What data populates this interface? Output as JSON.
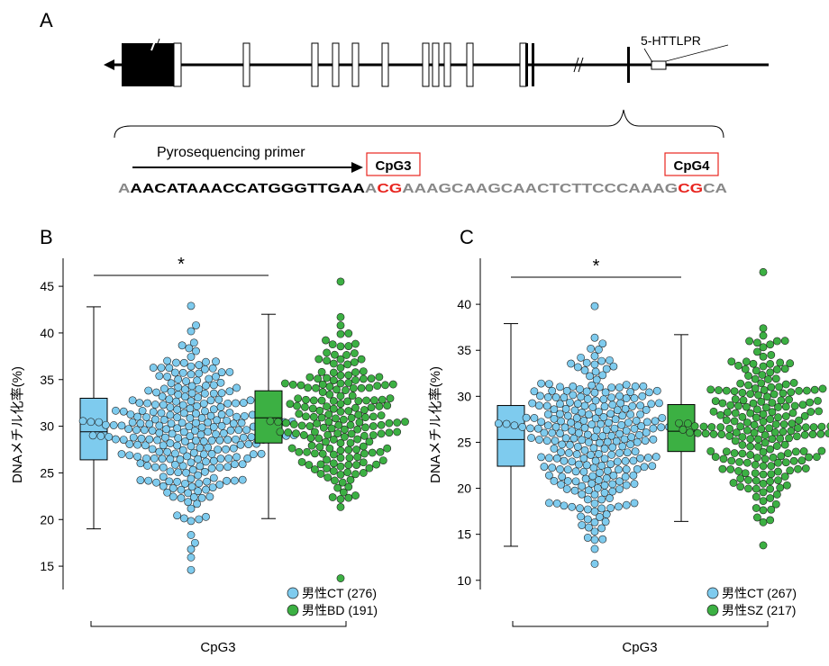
{
  "panelA": {
    "label": "A",
    "htt_label": "5-HTTLPR",
    "primer_label": "Pyrosequencing primer",
    "cpg3_box": "CpG3",
    "cpg4_box": "CpG4",
    "seq_segments": [
      {
        "text": "A",
        "color": "#888888"
      },
      {
        "text": "AACATAAACCATGGGTTGAA",
        "color": "#000000"
      },
      {
        "text": "A",
        "color": "#888888"
      },
      {
        "text": "CG",
        "color": "#e8251f"
      },
      {
        "text": "AAAGCAAGCAACTCTTCCCAAAG",
        "color": "#888888"
      },
      {
        "text": "CG",
        "color": "#e8251f"
      },
      {
        "text": "CA",
        "color": "#888888"
      }
    ]
  },
  "colors": {
    "ct": "#7ecbee",
    "patient": "#3cb043",
    "red": "#e8251f"
  },
  "chart_data": [
    {
      "panel": "B",
      "type": "boxplot+beeswarm",
      "xlabel": "CpG3",
      "ylabel": "DNAメチル化率(%)",
      "ylim": [
        12.5,
        48
      ],
      "yticks": [
        15,
        20,
        25,
        30,
        35,
        40,
        45
      ],
      "significance": "*",
      "series": [
        {
          "name": "男性CT",
          "n": 276,
          "legend": "男性CT (276)",
          "box": {
            "min": 19,
            "q1": 26.4,
            "median": 29.4,
            "q3": 33,
            "max": 42.8
          },
          "range": [
            14.6,
            42.9
          ],
          "mean": 29.4,
          "sd": 4.4
        },
        {
          "name": "男性BD",
          "n": 191,
          "legend": "男性BD (191)",
          "box": {
            "min": 20.1,
            "q1": 28.2,
            "median": 30.9,
            "q3": 33.8,
            "max": 42
          },
          "range": [
            13.7,
            45.5
          ],
          "mean": 31,
          "sd": 4.2
        }
      ]
    },
    {
      "panel": "C",
      "type": "boxplot+beeswarm",
      "xlabel": "CpG3",
      "ylabel": "DNAメチル化率(%)",
      "ylim": [
        9,
        45
      ],
      "yticks": [
        10,
        15,
        20,
        25,
        30,
        35,
        40
      ],
      "significance": "*",
      "series": [
        {
          "name": "男性CT",
          "n": 267,
          "legend": "男性CT (267)",
          "box": {
            "min": 13.7,
            "q1": 22.4,
            "median": 25.3,
            "q3": 29,
            "max": 37.9
          },
          "range": [
            11.8,
            39.8
          ],
          "mean": 25.6,
          "sd": 4.6
        },
        {
          "name": "男性SZ",
          "n": 217,
          "legend": "男性SZ (217)",
          "box": {
            "min": 16.4,
            "q1": 24,
            "median": 26.2,
            "q3": 29.1,
            "max": 36.7
          },
          "range": [
            13.8,
            43.5
          ],
          "mean": 26.6,
          "sd": 4.5
        }
      ]
    }
  ]
}
